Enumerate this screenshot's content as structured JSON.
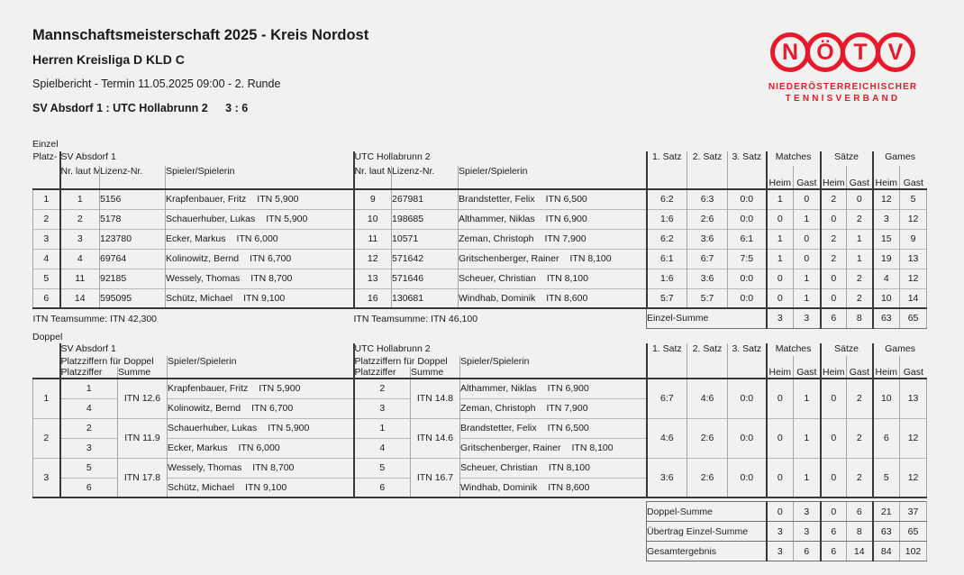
{
  "header": {
    "title": "Mannschaftsmeisterschaft 2025 - Kreis Nordost",
    "subtitle": "Herren Kreisliga D KLD C",
    "report_line": "Spielbericht - Termin 11.05.2025 09:00 - 2. Runde",
    "match_line": "SV Absdorf 1 : UTC Hollabrunn 2",
    "match_score": "3 : 6"
  },
  "logo": {
    "letters": [
      "N",
      "Ö",
      "T",
      "V"
    ],
    "line1": "NIEDERÖSTERREICHISCHER",
    "line2": "TENNISVERBAND",
    "color": "#e8192c"
  },
  "results_header": {
    "satz": [
      "1. Satz",
      "2. Satz",
      "3. Satz"
    ],
    "groups": [
      "Matches",
      "Sätze",
      "Games"
    ],
    "heim": "Heim",
    "gast": "Gast"
  },
  "einzel": {
    "section_label": "Einzel",
    "home_team": "SV Absdorf 1",
    "guest_team": "UTC Hollabrunn 2",
    "col_platzziffer": "Platz-\nziffer",
    "col_nr": "Nr. laut\nMeldeliste",
    "col_lizenz": "Lizenz-Nr.",
    "col_spieler": "Spieler/Spielerin",
    "rows": [
      {
        "pz": "1",
        "home": {
          "nr": "1",
          "lizenz": "5156",
          "name": "Krapfenbauer, Fritz",
          "itn": "ITN 5,900"
        },
        "guest": {
          "nr": "9",
          "lizenz": "267981",
          "name": "Brandstetter, Felix",
          "itn": "ITN 6,500"
        },
        "sets": [
          "6:2",
          "6:3",
          "0:0"
        ],
        "matches": [
          "1",
          "0"
        ],
        "saetze": [
          "2",
          "0"
        ],
        "games": [
          "12",
          "5"
        ]
      },
      {
        "pz": "2",
        "home": {
          "nr": "2",
          "lizenz": "5178",
          "name": "Schauerhuber, Lukas",
          "itn": "ITN 5,900"
        },
        "guest": {
          "nr": "10",
          "lizenz": "198685",
          "name": "Althammer, Niklas",
          "itn": "ITN 6,900"
        },
        "sets": [
          "1:6",
          "2:6",
          "0:0"
        ],
        "matches": [
          "0",
          "1"
        ],
        "saetze": [
          "0",
          "2"
        ],
        "games": [
          "3",
          "12"
        ]
      },
      {
        "pz": "3",
        "home": {
          "nr": "3",
          "lizenz": "123780",
          "name": "Ecker, Markus",
          "itn": "ITN 6,000"
        },
        "guest": {
          "nr": "11",
          "lizenz": "10571",
          "name": "Zeman, Christoph",
          "itn": "ITN 7,900"
        },
        "sets": [
          "6:2",
          "3:6",
          "6:1"
        ],
        "matches": [
          "1",
          "0"
        ],
        "saetze": [
          "2",
          "1"
        ],
        "games": [
          "15",
          "9"
        ]
      },
      {
        "pz": "4",
        "home": {
          "nr": "4",
          "lizenz": "69764",
          "name": "Kolinowitz, Bernd",
          "itn": "ITN 6,700"
        },
        "guest": {
          "nr": "12",
          "lizenz": "571642",
          "name": "Gritschenberger, Rainer",
          "itn": "ITN 8,100"
        },
        "sets": [
          "6:1",
          "6:7",
          "7:5"
        ],
        "matches": [
          "1",
          "0"
        ],
        "saetze": [
          "2",
          "1"
        ],
        "games": [
          "19",
          "13"
        ]
      },
      {
        "pz": "5",
        "home": {
          "nr": "11",
          "lizenz": "92185",
          "name": "Wessely, Thomas",
          "itn": "ITN 8,700"
        },
        "guest": {
          "nr": "13",
          "lizenz": "571646",
          "name": "Scheuer, Christian",
          "itn": "ITN 8,100"
        },
        "sets": [
          "1:6",
          "3:6",
          "0:0"
        ],
        "matches": [
          "0",
          "1"
        ],
        "saetze": [
          "0",
          "2"
        ],
        "games": [
          "4",
          "12"
        ]
      },
      {
        "pz": "6",
        "home": {
          "nr": "14",
          "lizenz": "595095",
          "name": "Schütz, Michael",
          "itn": "ITN 9,100"
        },
        "guest": {
          "nr": "16",
          "lizenz": "130681",
          "name": "Windhab, Dominik",
          "itn": "ITN 8,600"
        },
        "sets": [
          "5:7",
          "5:7",
          "0:0"
        ],
        "matches": [
          "0",
          "1"
        ],
        "saetze": [
          "0",
          "2"
        ],
        "games": [
          "10",
          "14"
        ]
      }
    ],
    "teamsumme_home": "ITN Teamsumme:  ITN 42,300",
    "teamsumme_guest": "ITN Teamsumme:  ITN 46,100",
    "summe_label": "Einzel-Summe",
    "summe": [
      "3",
      "3",
      "6",
      "8",
      "63",
      "65"
    ]
  },
  "doppel": {
    "section_label": "Doppel",
    "home_team": "SV Absdorf 1",
    "guest_team": "UTC Hollabrunn 2",
    "col_pz_doppel": "Platzziffern für Doppel",
    "col_platzziffer": "Platzziffer",
    "col_summe": "Summe",
    "col_spieler": "Spieler/Spielerin",
    "rows": [
      {
        "pz": "1",
        "home": {
          "pz": [
            "1",
            "4"
          ],
          "summe": "ITN 12.6",
          "players": [
            {
              "name": "Krapfenbauer, Fritz",
              "itn": "ITN 5,900"
            },
            {
              "name": "Kolinowitz, Bernd",
              "itn": "ITN 6,700"
            }
          ]
        },
        "guest": {
          "pz": [
            "2",
            "3"
          ],
          "summe": "ITN 14.8",
          "players": [
            {
              "name": "Althammer, Niklas",
              "itn": "ITN 6,900"
            },
            {
              "name": "Zeman, Christoph",
              "itn": "ITN 7,900"
            }
          ]
        },
        "sets": [
          "6:7",
          "4:6",
          "0:0"
        ],
        "matches": [
          "0",
          "1"
        ],
        "saetze": [
          "0",
          "2"
        ],
        "games": [
          "10",
          "13"
        ]
      },
      {
        "pz": "2",
        "home": {
          "pz": [
            "2",
            "3"
          ],
          "summe": "ITN 11.9",
          "players": [
            {
              "name": "Schauerhuber, Lukas",
              "itn": "ITN 5,900"
            },
            {
              "name": "Ecker, Markus",
              "itn": "ITN 6,000"
            }
          ]
        },
        "guest": {
          "pz": [
            "1",
            "4"
          ],
          "summe": "ITN 14.6",
          "players": [
            {
              "name": "Brandstetter, Felix",
              "itn": "ITN 6,500"
            },
            {
              "name": "Gritschenberger, Rainer",
              "itn": "ITN 8,100"
            }
          ]
        },
        "sets": [
          "4:6",
          "2:6",
          "0:0"
        ],
        "matches": [
          "0",
          "1"
        ],
        "saetze": [
          "0",
          "2"
        ],
        "games": [
          "6",
          "12"
        ]
      },
      {
        "pz": "3",
        "home": {
          "pz": [
            "5",
            "6"
          ],
          "summe": "ITN 17.8",
          "players": [
            {
              "name": "Wessely, Thomas",
              "itn": "ITN 8,700"
            },
            {
              "name": "Schütz, Michael",
              "itn": "ITN 9,100"
            }
          ]
        },
        "guest": {
          "pz": [
            "5",
            "6"
          ],
          "summe": "ITN 16.7",
          "players": [
            {
              "name": "Scheuer, Christian",
              "itn": "ITN 8,100"
            },
            {
              "name": "Windhab, Dominik",
              "itn": "ITN 8,600"
            }
          ]
        },
        "sets": [
          "3:6",
          "2:6",
          "0:0"
        ],
        "matches": [
          "0",
          "1"
        ],
        "saetze": [
          "0",
          "2"
        ],
        "games": [
          "5",
          "12"
        ]
      }
    ]
  },
  "totals": {
    "rows": [
      {
        "label": "Doppel-Summe",
        "values": [
          "0",
          "3",
          "0",
          "6",
          "21",
          "37"
        ]
      },
      {
        "label": "Übertrag Einzel-Summe",
        "values": [
          "3",
          "3",
          "6",
          "8",
          "63",
          "65"
        ]
      },
      {
        "label": "Gesamtergebnis",
        "values": [
          "3",
          "6",
          "6",
          "14",
          "84",
          "102"
        ]
      }
    ]
  }
}
